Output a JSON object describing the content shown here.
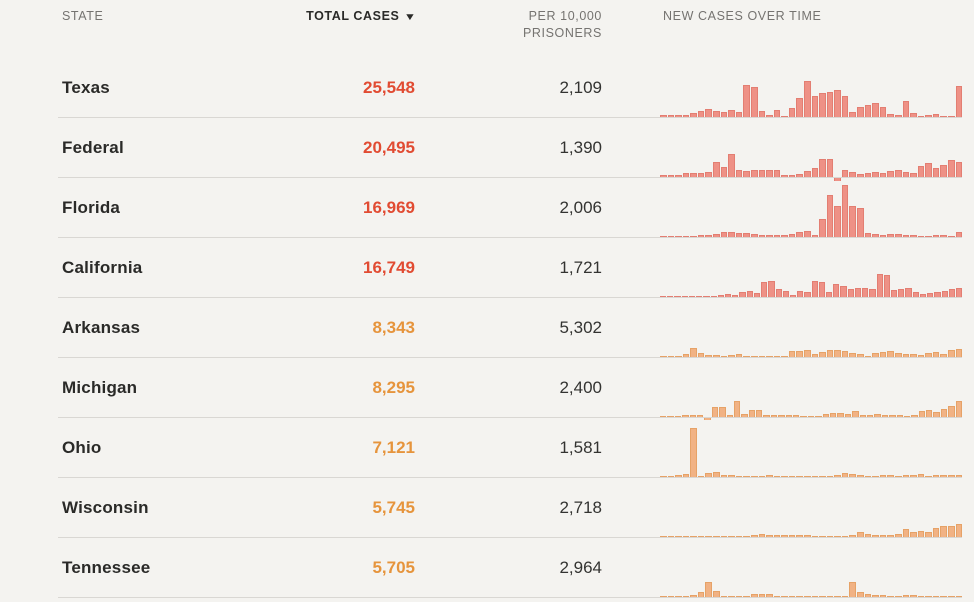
{
  "header": {
    "state_label": "STATE",
    "total_cases_label": "TOTAL CASES",
    "sort_icon": "triangle-down-icon",
    "per_10k_label": "PER 10,000 PRISONERS",
    "new_cases_label": "NEW CASES OVER TIME"
  },
  "colors": {
    "background": "#f4f3f0",
    "divider": "#d9d7d3",
    "header_text": "#757370",
    "state_text": "#2a2a28",
    "per10k_text": "#333331",
    "red_value": "#e14b32",
    "orange_value": "#e6943c",
    "red_bar_fill": "#ee9186",
    "red_bar_stroke": "#e37e72",
    "orange_bar_fill": "#f1b284",
    "orange_bar_stroke": "#e6a267"
  },
  "chart_data": {
    "type": "table",
    "columns": [
      "STATE",
      "TOTAL CASES",
      "PER 10,000 PRISONERS",
      "NEW CASES OVER TIME"
    ],
    "sparkline_type": "bar",
    "sparkline_scale_note": "values are percent of shared max bar height",
    "rows": [
      {
        "state": "Texas",
        "total_cases": "25,548",
        "per_10k": "2,109",
        "tier": "red",
        "new_cases_over_time": [
          4,
          4,
          4,
          4,
          7,
          12,
          15,
          12,
          10,
          14,
          10,
          62,
          57,
          11,
          4,
          14,
          2,
          17,
          37,
          70,
          40,
          47,
          49,
          52,
          40,
          9,
          19,
          23,
          27,
          19,
          6,
          4,
          30,
          8,
          2,
          4,
          6,
          2,
          2,
          60
        ]
      },
      {
        "state": "Federal",
        "total_cases": "20,495",
        "per_10k": "1,390",
        "tier": "red",
        "new_cases_over_time": [
          4,
          4,
          3,
          7,
          7,
          7,
          9,
          28,
          20,
          45,
          13,
          11,
          14,
          14,
          14,
          14,
          4,
          3,
          6,
          11,
          18,
          34,
          34,
          -7,
          14,
          10,
          6,
          8,
          10,
          8,
          12,
          14,
          10,
          8,
          22,
          26,
          18,
          24,
          32,
          28
        ]
      },
      {
        "state": "Florida",
        "total_cases": "16,969",
        "per_10k": "2,006",
        "tier": "red",
        "new_cases_over_time": [
          1,
          2,
          2,
          2,
          2,
          3,
          4,
          6,
          9,
          10,
          8,
          7,
          5,
          3,
          3,
          3,
          3,
          6,
          9,
          12,
          3,
          35,
          80,
          60,
          100,
          60,
          55,
          8,
          5,
          4,
          6,
          5,
          4,
          3,
          2,
          2,
          3,
          3,
          2,
          9
        ]
      },
      {
        "state": "California",
        "total_cases": "16,749",
        "per_10k": "1,721",
        "tier": "red",
        "new_cases_over_time": [
          2,
          2,
          2,
          2,
          2,
          2,
          2,
          2,
          4,
          6,
          3,
          10,
          12,
          7,
          28,
          30,
          15,
          12,
          4,
          12,
          10,
          30,
          28,
          10,
          25,
          22,
          15,
          18,
          18,
          15,
          45,
          42,
          14,
          15,
          18,
          10,
          5,
          8,
          10,
          12,
          15,
          18
        ]
      },
      {
        "state": "Arkansas",
        "total_cases": "8,343",
        "per_10k": "5,302",
        "tier": "orange",
        "new_cases_over_time": [
          1,
          1,
          2,
          5,
          18,
          8,
          4,
          3,
          2,
          4,
          5,
          2,
          1,
          2,
          2,
          1,
          1,
          12,
          12,
          14,
          5,
          10,
          14,
          14,
          12,
          8,
          5,
          2,
          8,
          10,
          12,
          8,
          5,
          6,
          3,
          8,
          10,
          6,
          14,
          16
        ]
      },
      {
        "state": "Michigan",
        "total_cases": "8,295",
        "per_10k": "2,400",
        "tier": "orange",
        "new_cases_over_time": [
          2,
          2,
          2,
          3,
          3,
          4,
          -6,
          20,
          20,
          4,
          30,
          5,
          14,
          14,
          3,
          3,
          3,
          3,
          3,
          2,
          2,
          2,
          5,
          7,
          7,
          6,
          12,
          4,
          3,
          6,
          3,
          3,
          3,
          2,
          4,
          12,
          14,
          10,
          16,
          22,
          30
        ]
      },
      {
        "state": "Ohio",
        "total_cases": "7,121",
        "per_10k": "1,581",
        "tier": "orange",
        "new_cases_over_time": [
          1,
          2,
          4,
          6,
          95,
          2,
          8,
          10,
          4,
          3,
          2,
          2,
          2,
          2,
          3,
          2,
          2,
          2,
          2,
          2,
          2,
          2,
          2,
          3,
          8,
          5,
          3,
          2,
          2,
          3,
          4,
          2,
          3,
          4,
          5,
          2,
          3,
          3,
          3,
          3
        ]
      },
      {
        "state": "Wisconsin",
        "total_cases": "5,745",
        "per_10k": "2,718",
        "tier": "orange",
        "new_cases_over_time": [
          1,
          1,
          2,
          2,
          2,
          2,
          2,
          1,
          1,
          2,
          2,
          2,
          4,
          6,
          3,
          3,
          3,
          3,
          4,
          3,
          2,
          2,
          2,
          2,
          2,
          3,
          10,
          6,
          4,
          3,
          3,
          6,
          15,
          10,
          12,
          10,
          18,
          22,
          22,
          25
        ]
      },
      {
        "state": "Tennessee",
        "total_cases": "5,705",
        "per_10k": "2,964",
        "tier": "orange",
        "new_cases_over_time": [
          2,
          2,
          1,
          2,
          4,
          10,
          28,
          12,
          2,
          1,
          1,
          1,
          5,
          5,
          5,
          2,
          2,
          2,
          2,
          1,
          2,
          1,
          1,
          1,
          1,
          28,
          10,
          5,
          3,
          3,
          2,
          1,
          4,
          4,
          2,
          2,
          2,
          2,
          2,
          2
        ]
      }
    ]
  }
}
